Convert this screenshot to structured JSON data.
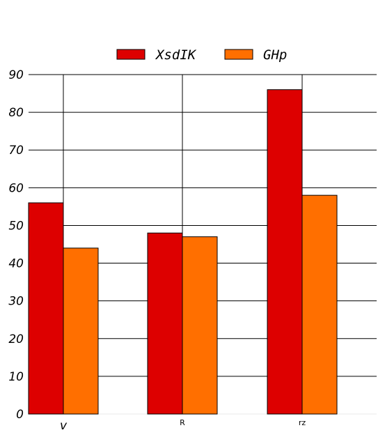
{
  "chart_data": {
    "type": "bar",
    "categories": [
      "v",
      "R",
      "rz"
    ],
    "series": [
      {
        "name": "XsdIK",
        "values": [
          56,
          48,
          86
        ],
        "color": "#dd0000"
      },
      {
        "name": "GHp",
        "values": [
          44,
          47,
          58
        ],
        "color": "#ff6f00"
      }
    ],
    "yticks": [
      "0",
      "10",
      "20",
      "30",
      "40",
      "50",
      "60",
      "70",
      "80",
      "90"
    ],
    "ylim": [
      0,
      90
    ],
    "grid": true,
    "legend_position": "top-center",
    "title": "",
    "xlabel": "",
    "ylabel": ""
  }
}
